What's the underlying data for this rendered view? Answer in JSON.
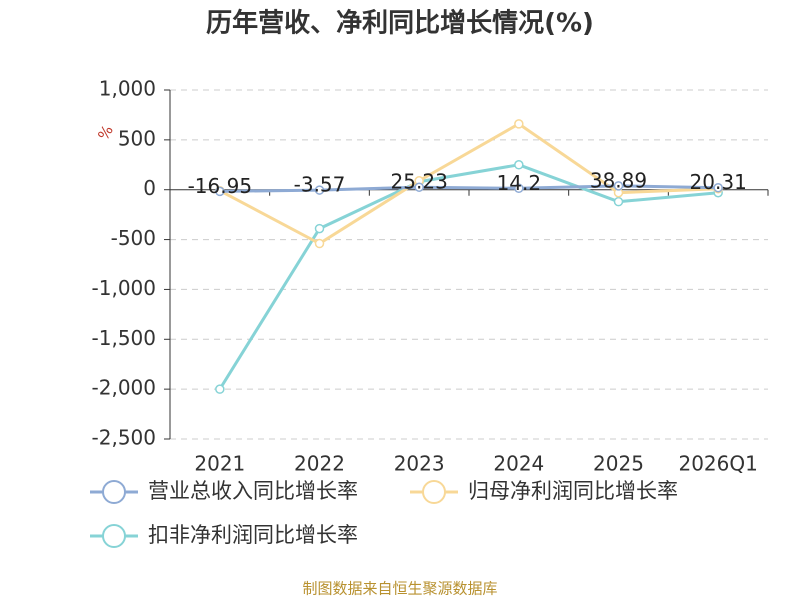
{
  "chart_data": {
    "type": "line",
    "title": "历年营收、净利同比增长情况(%)",
    "y_label": "%",
    "source": "制图数据来自恒生聚源数据库",
    "categories": [
      "2021",
      "2022",
      "2023",
      "2024",
      "2025",
      "2026Q1"
    ],
    "series": [
      {
        "name": "营业总收入同比增长率",
        "color": "#8eaad4",
        "values": [
          -16.95,
          -3.57,
          25.23,
          14.2,
          38.89,
          20.31
        ],
        "show_labels": true
      },
      {
        "name": "归母净利润同比增长率",
        "color": "#f8d897",
        "values": [
          -10,
          -540,
          90,
          660,
          -30,
          10
        ]
      },
      {
        "name": "扣非净利润同比增长率",
        "color": "#86d3d6",
        "values": [
          -2000,
          -390,
          80,
          250,
          -120,
          -30
        ]
      }
    ],
    "ylim": [
      -2500,
      1000
    ],
    "yticks": [
      {
        "value": -2500,
        "label": "-2,500"
      },
      {
        "value": -2000,
        "label": "-2,000"
      },
      {
        "value": -1500,
        "label": "-1,500"
      },
      {
        "value": -1000,
        "label": "-1,000"
      },
      -500,
      0,
      500,
      {
        "value": 1000,
        "label": "1,000"
      }
    ],
    "grid": true
  }
}
